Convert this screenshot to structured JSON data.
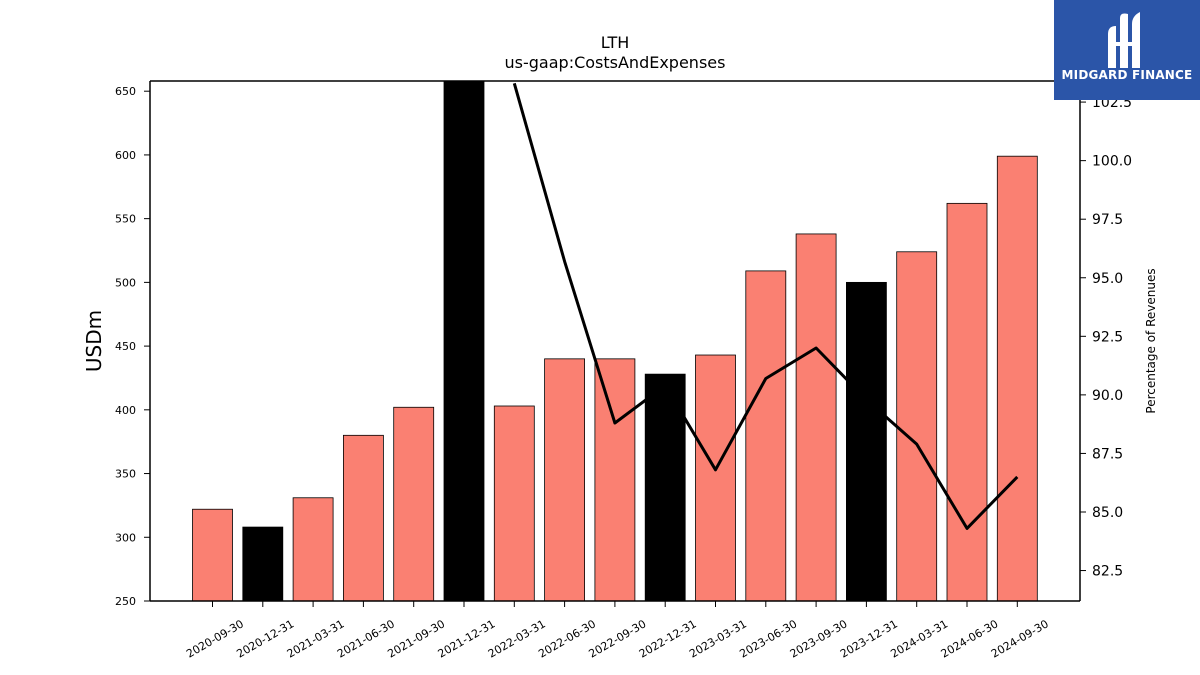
{
  "chart_data": {
    "type": "bar",
    "title": "LTH",
    "subtitle": "us-gaap:CostsAndExpenses",
    "ylabel": "USDm",
    "y2label": "Percentage of Revenues",
    "ylim": [
      250,
      658
    ],
    "y2lim": [
      81.2,
      103.4
    ],
    "yticks": [
      250,
      300,
      350,
      400,
      450,
      500,
      550,
      600,
      650
    ],
    "y2ticks": [
      "82.5",
      "85.0",
      "87.5",
      "90.0",
      "92.5",
      "95.0",
      "97.5",
      "100.0",
      "102.5"
    ],
    "categories": [
      "2020-09-30",
      "2020-12-31",
      "2021-03-31",
      "2021-06-30",
      "2021-09-30",
      "2021-12-31",
      "2022-03-31",
      "2022-06-30",
      "2022-09-30",
      "2022-12-31",
      "2023-03-31",
      "2023-06-30",
      "2023-09-30",
      "2023-12-31",
      "2024-03-31",
      "2024-06-30",
      "2024-09-30"
    ],
    "series": [
      {
        "values": [
          322,
          308,
          331,
          380,
          402,
          658,
          403,
          440,
          440,
          428,
          443,
          509,
          538,
          500,
          524,
          562,
          599
        ],
        "colors": [
          "#fa8072",
          "#000000",
          "#fa8072",
          "#fa8072",
          "#fa8072",
          "#000000",
          "#fa8072",
          "#fa8072",
          "#fa8072",
          "#000000",
          "#fa8072",
          "#fa8072",
          "#fa8072",
          "#000000",
          "#fa8072",
          "#fa8072",
          "#fa8072"
        ]
      },
      {
        "type": "line",
        "axis": "right",
        "color": "#000000",
        "values": [
          null,
          null,
          null,
          null,
          null,
          null,
          103.3,
          95.7,
          88.8,
          90.4,
          86.8,
          90.7,
          92.0,
          89.8,
          87.9,
          84.3,
          86.5
        ]
      }
    ],
    "grid": false
  },
  "logo": {
    "text": "MIDGARD FINANCE",
    "bg": "#2b55a8"
  }
}
